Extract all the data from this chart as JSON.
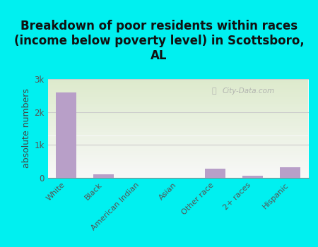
{
  "title": "Breakdown of poor residents within races\n(income below poverty level) in Scottsboro,\nAL",
  "categories": [
    "White",
    "Black",
    "American Indian",
    "Asian",
    "Other race",
    "2+ races",
    "Hispanic"
  ],
  "values": [
    2600,
    100,
    0,
    0,
    280,
    60,
    330
  ],
  "bar_color": "#b89fc8",
  "ylabel": "absolute numbers",
  "ylim": [
    0,
    3000
  ],
  "yticks": [
    0,
    1000,
    2000,
    3000
  ],
  "ytick_labels": [
    "0",
    "1k",
    "2k",
    "3k"
  ],
  "background_outer": "#00f0f0",
  "background_plot_top": "#ddeacc",
  "background_plot_bottom": "#f8f8f8",
  "grid_color": "#e0e0e0",
  "watermark": "City-Data.com",
  "title_fontsize": 12,
  "ylabel_fontsize": 9
}
